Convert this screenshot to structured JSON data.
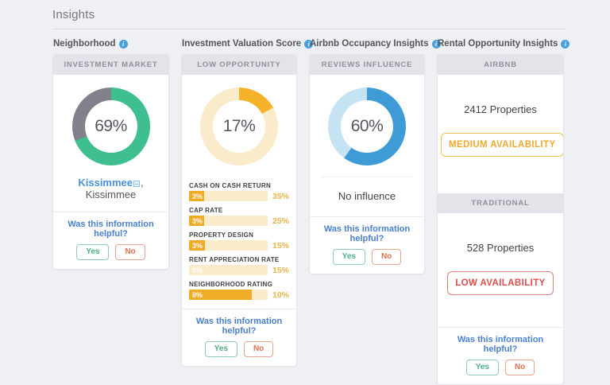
{
  "page": {
    "title": "Insights"
  },
  "helpful": {
    "question": "Was this information helpful?",
    "yes": "Yes",
    "no": "No"
  },
  "cards": {
    "neighborhood": {
      "title": "Neighborhood",
      "header": "INVESTMENT MARKET",
      "donut": {
        "value": 69,
        "label": "69%",
        "color": "#3fbf8f",
        "track": "#80818a"
      },
      "location": {
        "link": "Kissimmee",
        "rest": ", Kissimmee"
      }
    },
    "valuation": {
      "title": "Investment Valuation Score",
      "header": "LOW OPPORTUNITY",
      "donut": {
        "value": 17,
        "label": "17%",
        "color": "#f5b32c",
        "track": "#faecca"
      },
      "metrics": [
        {
          "label": "CASH ON CASH RETURN",
          "value": "3%",
          "max": "35%",
          "fill_pct": 9
        },
        {
          "label": "CAP RATE",
          "value": "3%",
          "max": "25%",
          "fill_pct": 12
        },
        {
          "label": "PROPERTY DESIGN",
          "value": "3%",
          "max": "15%",
          "fill_pct": 20
        },
        {
          "label": "RENT APPRECIATION RATE",
          "value": "0%",
          "max": "15%",
          "fill_pct": 0
        },
        {
          "label": "NEIGHBORHOOD RATING",
          "value": "8%",
          "max": "10%",
          "fill_pct": 80
        }
      ]
    },
    "occupancy": {
      "title": "Airbnb Occupancy Insights",
      "header": "REVIEWS INFLUENCE",
      "donut": {
        "value": 60,
        "label": "60%",
        "color": "#3e9bd5",
        "track": "#c5e3f2"
      },
      "influence": "No influence"
    },
    "rental": {
      "title": "Rental Opportunity Insights",
      "sections": [
        {
          "header": "AIRBNB",
          "properties": "2412 Properties",
          "availability": "MEDIUM AVAILABILITY",
          "color": "#f0a92e"
        },
        {
          "header": "TRADITIONAL",
          "properties": "528 Properties",
          "availability": "LOW AVAILABILITY",
          "color": "#e04b4b"
        }
      ]
    }
  }
}
